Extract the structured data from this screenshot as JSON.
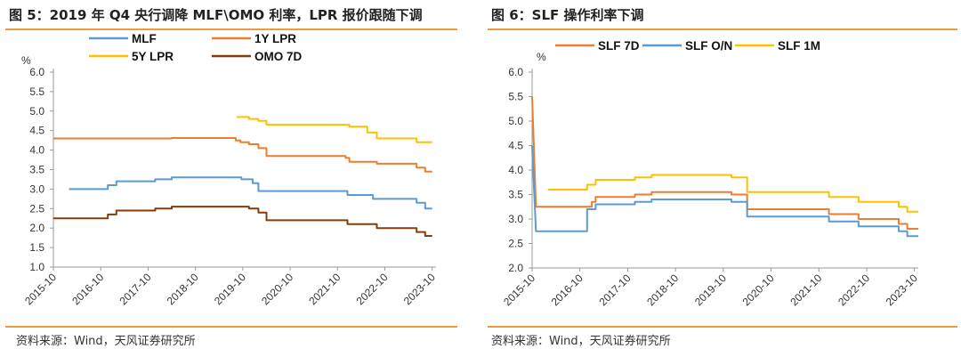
{
  "left_panel": {
    "title": "图 5：2019 年 Q4 央行调降 MLF\\OMO 利率，LPR 报价跟随下调",
    "source": "资料来源：Wind，天风证券研究所"
  },
  "right_panel": {
    "title": "图 6：SLF 操作利率下调",
    "source": "资料来源：Wind，天风证券研究所"
  },
  "chart_data": [
    {
      "type": "line",
      "unit": "%",
      "ylim": [
        1.0,
        6.0
      ],
      "yticks": [
        "6.0",
        "5.5",
        "5.0",
        "4.5",
        "4.0",
        "3.5",
        "3.0",
        "2.5",
        "2.0",
        "1.5",
        "1.0"
      ],
      "xlim": [
        2015.75,
        2023.83
      ],
      "xticks": [
        "2015-10",
        "2016-10",
        "2017-10",
        "2018-10",
        "2019-10",
        "2020-10",
        "2021-10",
        "2022-10",
        "2023-10"
      ],
      "grid": false,
      "legend_position": "top",
      "series": [
        {
          "name": "MLF",
          "color": "#5B9BD5",
          "points": [
            [
              2016.08,
              3.0
            ],
            [
              2016.9,
              3.0
            ],
            [
              2016.9,
              3.1
            ],
            [
              2017.08,
              3.1
            ],
            [
              2017.08,
              3.2
            ],
            [
              2017.9,
              3.2
            ],
            [
              2017.9,
              3.25
            ],
            [
              2018.25,
              3.25
            ],
            [
              2018.25,
              3.3
            ],
            [
              2019.72,
              3.3
            ],
            [
              2019.72,
              3.25
            ],
            [
              2019.96,
              3.25
            ],
            [
              2019.96,
              3.15
            ],
            [
              2020.08,
              3.15
            ],
            [
              2020.08,
              2.95
            ],
            [
              2021.96,
              2.95
            ],
            [
              2021.96,
              2.85
            ],
            [
              2022.5,
              2.85
            ],
            [
              2022.5,
              2.75
            ],
            [
              2023.42,
              2.75
            ],
            [
              2023.42,
              2.65
            ],
            [
              2023.6,
              2.65
            ],
            [
              2023.6,
              2.5
            ],
            [
              2023.75,
              2.5
            ]
          ]
        },
        {
          "name": "1Y LPR",
          "color": "#ED7D31",
          "points": [
            [
              2015.75,
              4.3
            ],
            [
              2018.25,
              4.3
            ],
            [
              2018.25,
              4.31
            ],
            [
              2019.6,
              4.31
            ],
            [
              2019.6,
              4.25
            ],
            [
              2019.7,
              4.25
            ],
            [
              2019.7,
              4.2
            ],
            [
              2019.88,
              4.2
            ],
            [
              2019.88,
              4.15
            ],
            [
              2020.08,
              4.15
            ],
            [
              2020.08,
              4.05
            ],
            [
              2020.25,
              4.05
            ],
            [
              2020.25,
              3.85
            ],
            [
              2021.92,
              3.85
            ],
            [
              2021.92,
              3.8
            ],
            [
              2022.0,
              3.8
            ],
            [
              2022.0,
              3.7
            ],
            [
              2022.58,
              3.7
            ],
            [
              2022.58,
              3.65
            ],
            [
              2023.42,
              3.65
            ],
            [
              2023.42,
              3.55
            ],
            [
              2023.6,
              3.55
            ],
            [
              2023.6,
              3.45
            ],
            [
              2023.75,
              3.45
            ]
          ]
        },
        {
          "name": "5Y LPR",
          "color": "#FFC000",
          "points": [
            [
              2019.62,
              4.85
            ],
            [
              2019.88,
              4.85
            ],
            [
              2019.88,
              4.8
            ],
            [
              2020.08,
              4.8
            ],
            [
              2020.08,
              4.75
            ],
            [
              2020.25,
              4.75
            ],
            [
              2020.25,
              4.65
            ],
            [
              2022.0,
              4.65
            ],
            [
              2022.0,
              4.6
            ],
            [
              2022.38,
              4.6
            ],
            [
              2022.38,
              4.45
            ],
            [
              2022.58,
              4.45
            ],
            [
              2022.58,
              4.3
            ],
            [
              2023.42,
              4.3
            ],
            [
              2023.42,
              4.2
            ],
            [
              2023.75,
              4.2
            ]
          ]
        },
        {
          "name": "OMO 7D",
          "color": "#843C0C",
          "points": [
            [
              2015.75,
              2.25
            ],
            [
              2016.9,
              2.25
            ],
            [
              2016.9,
              2.35
            ],
            [
              2017.08,
              2.35
            ],
            [
              2017.08,
              2.45
            ],
            [
              2017.9,
              2.45
            ],
            [
              2017.9,
              2.5
            ],
            [
              2018.25,
              2.5
            ],
            [
              2018.25,
              2.55
            ],
            [
              2019.88,
              2.55
            ],
            [
              2019.88,
              2.5
            ],
            [
              2020.08,
              2.5
            ],
            [
              2020.08,
              2.4
            ],
            [
              2020.25,
              2.4
            ],
            [
              2020.25,
              2.2
            ],
            [
              2021.96,
              2.2
            ],
            [
              2021.96,
              2.1
            ],
            [
              2022.58,
              2.1
            ],
            [
              2022.58,
              2.0
            ],
            [
              2023.42,
              2.0
            ],
            [
              2023.42,
              1.9
            ],
            [
              2023.6,
              1.9
            ],
            [
              2023.6,
              1.8
            ],
            [
              2023.75,
              1.8
            ]
          ]
        }
      ]
    },
    {
      "type": "line",
      "unit": "%",
      "ylim": [
        2.0,
        6.0
      ],
      "yticks": [
        "6.0",
        "5.5",
        "5.0",
        "4.5",
        "4.0",
        "3.5",
        "3.0",
        "2.5",
        "2.0"
      ],
      "xlim": [
        2015.75,
        2023.83
      ],
      "xticks": [
        "2015-10",
        "2016-10",
        "2017-10",
        "2018-10",
        "2019-10",
        "2020-10",
        "2021-10",
        "2022-10",
        "2023-10"
      ],
      "grid": false,
      "legend_position": "top",
      "series": [
        {
          "name": "SLF 7D",
          "color": "#ED7D31",
          "points": [
            [
              2015.75,
              5.5
            ],
            [
              2015.83,
              3.25
            ],
            [
              2017.0,
              3.25
            ],
            [
              2017.0,
              3.35
            ],
            [
              2017.08,
              3.35
            ],
            [
              2017.08,
              3.45
            ],
            [
              2017.9,
              3.45
            ],
            [
              2017.9,
              3.5
            ],
            [
              2018.25,
              3.5
            ],
            [
              2018.25,
              3.55
            ],
            [
              2019.92,
              3.55
            ],
            [
              2019.92,
              3.5
            ],
            [
              2020.25,
              3.5
            ],
            [
              2020.25,
              3.2
            ],
            [
              2021.96,
              3.2
            ],
            [
              2021.96,
              3.1
            ],
            [
              2022.58,
              3.1
            ],
            [
              2022.58,
              3.0
            ],
            [
              2023.42,
              3.0
            ],
            [
              2023.42,
              2.9
            ],
            [
              2023.6,
              2.9
            ],
            [
              2023.6,
              2.8
            ],
            [
              2023.83,
              2.8
            ]
          ]
        },
        {
          "name": "SLF O/N",
          "color": "#5B9BD5",
          "points": [
            [
              2015.75,
              4.5
            ],
            [
              2015.83,
              2.75
            ],
            [
              2016.9,
              2.75
            ],
            [
              2016.9,
              3.2
            ],
            [
              2017.08,
              3.2
            ],
            [
              2017.08,
              3.3
            ],
            [
              2017.9,
              3.3
            ],
            [
              2017.9,
              3.35
            ],
            [
              2018.25,
              3.35
            ],
            [
              2018.25,
              3.4
            ],
            [
              2019.92,
              3.4
            ],
            [
              2019.92,
              3.35
            ],
            [
              2020.25,
              3.35
            ],
            [
              2020.25,
              3.05
            ],
            [
              2021.96,
              3.05
            ],
            [
              2021.96,
              2.95
            ],
            [
              2022.58,
              2.95
            ],
            [
              2022.58,
              2.85
            ],
            [
              2023.42,
              2.85
            ],
            [
              2023.42,
              2.75
            ],
            [
              2023.6,
              2.75
            ],
            [
              2023.6,
              2.65
            ],
            [
              2023.83,
              2.65
            ]
          ]
        },
        {
          "name": "SLF 1M",
          "color": "#FFC000",
          "points": [
            [
              2016.08,
              3.6
            ],
            [
              2016.9,
              3.6
            ],
            [
              2016.9,
              3.7
            ],
            [
              2017.08,
              3.7
            ],
            [
              2017.08,
              3.8
            ],
            [
              2017.9,
              3.8
            ],
            [
              2017.9,
              3.85
            ],
            [
              2018.25,
              3.85
            ],
            [
              2018.25,
              3.9
            ],
            [
              2019.92,
              3.9
            ],
            [
              2019.92,
              3.85
            ],
            [
              2020.25,
              3.85
            ],
            [
              2020.25,
              3.55
            ],
            [
              2021.96,
              3.55
            ],
            [
              2021.96,
              3.45
            ],
            [
              2022.58,
              3.45
            ],
            [
              2022.58,
              3.35
            ],
            [
              2023.42,
              3.35
            ],
            [
              2023.42,
              3.25
            ],
            [
              2023.6,
              3.25
            ],
            [
              2023.6,
              3.15
            ],
            [
              2023.83,
              3.15
            ]
          ]
        }
      ]
    }
  ]
}
